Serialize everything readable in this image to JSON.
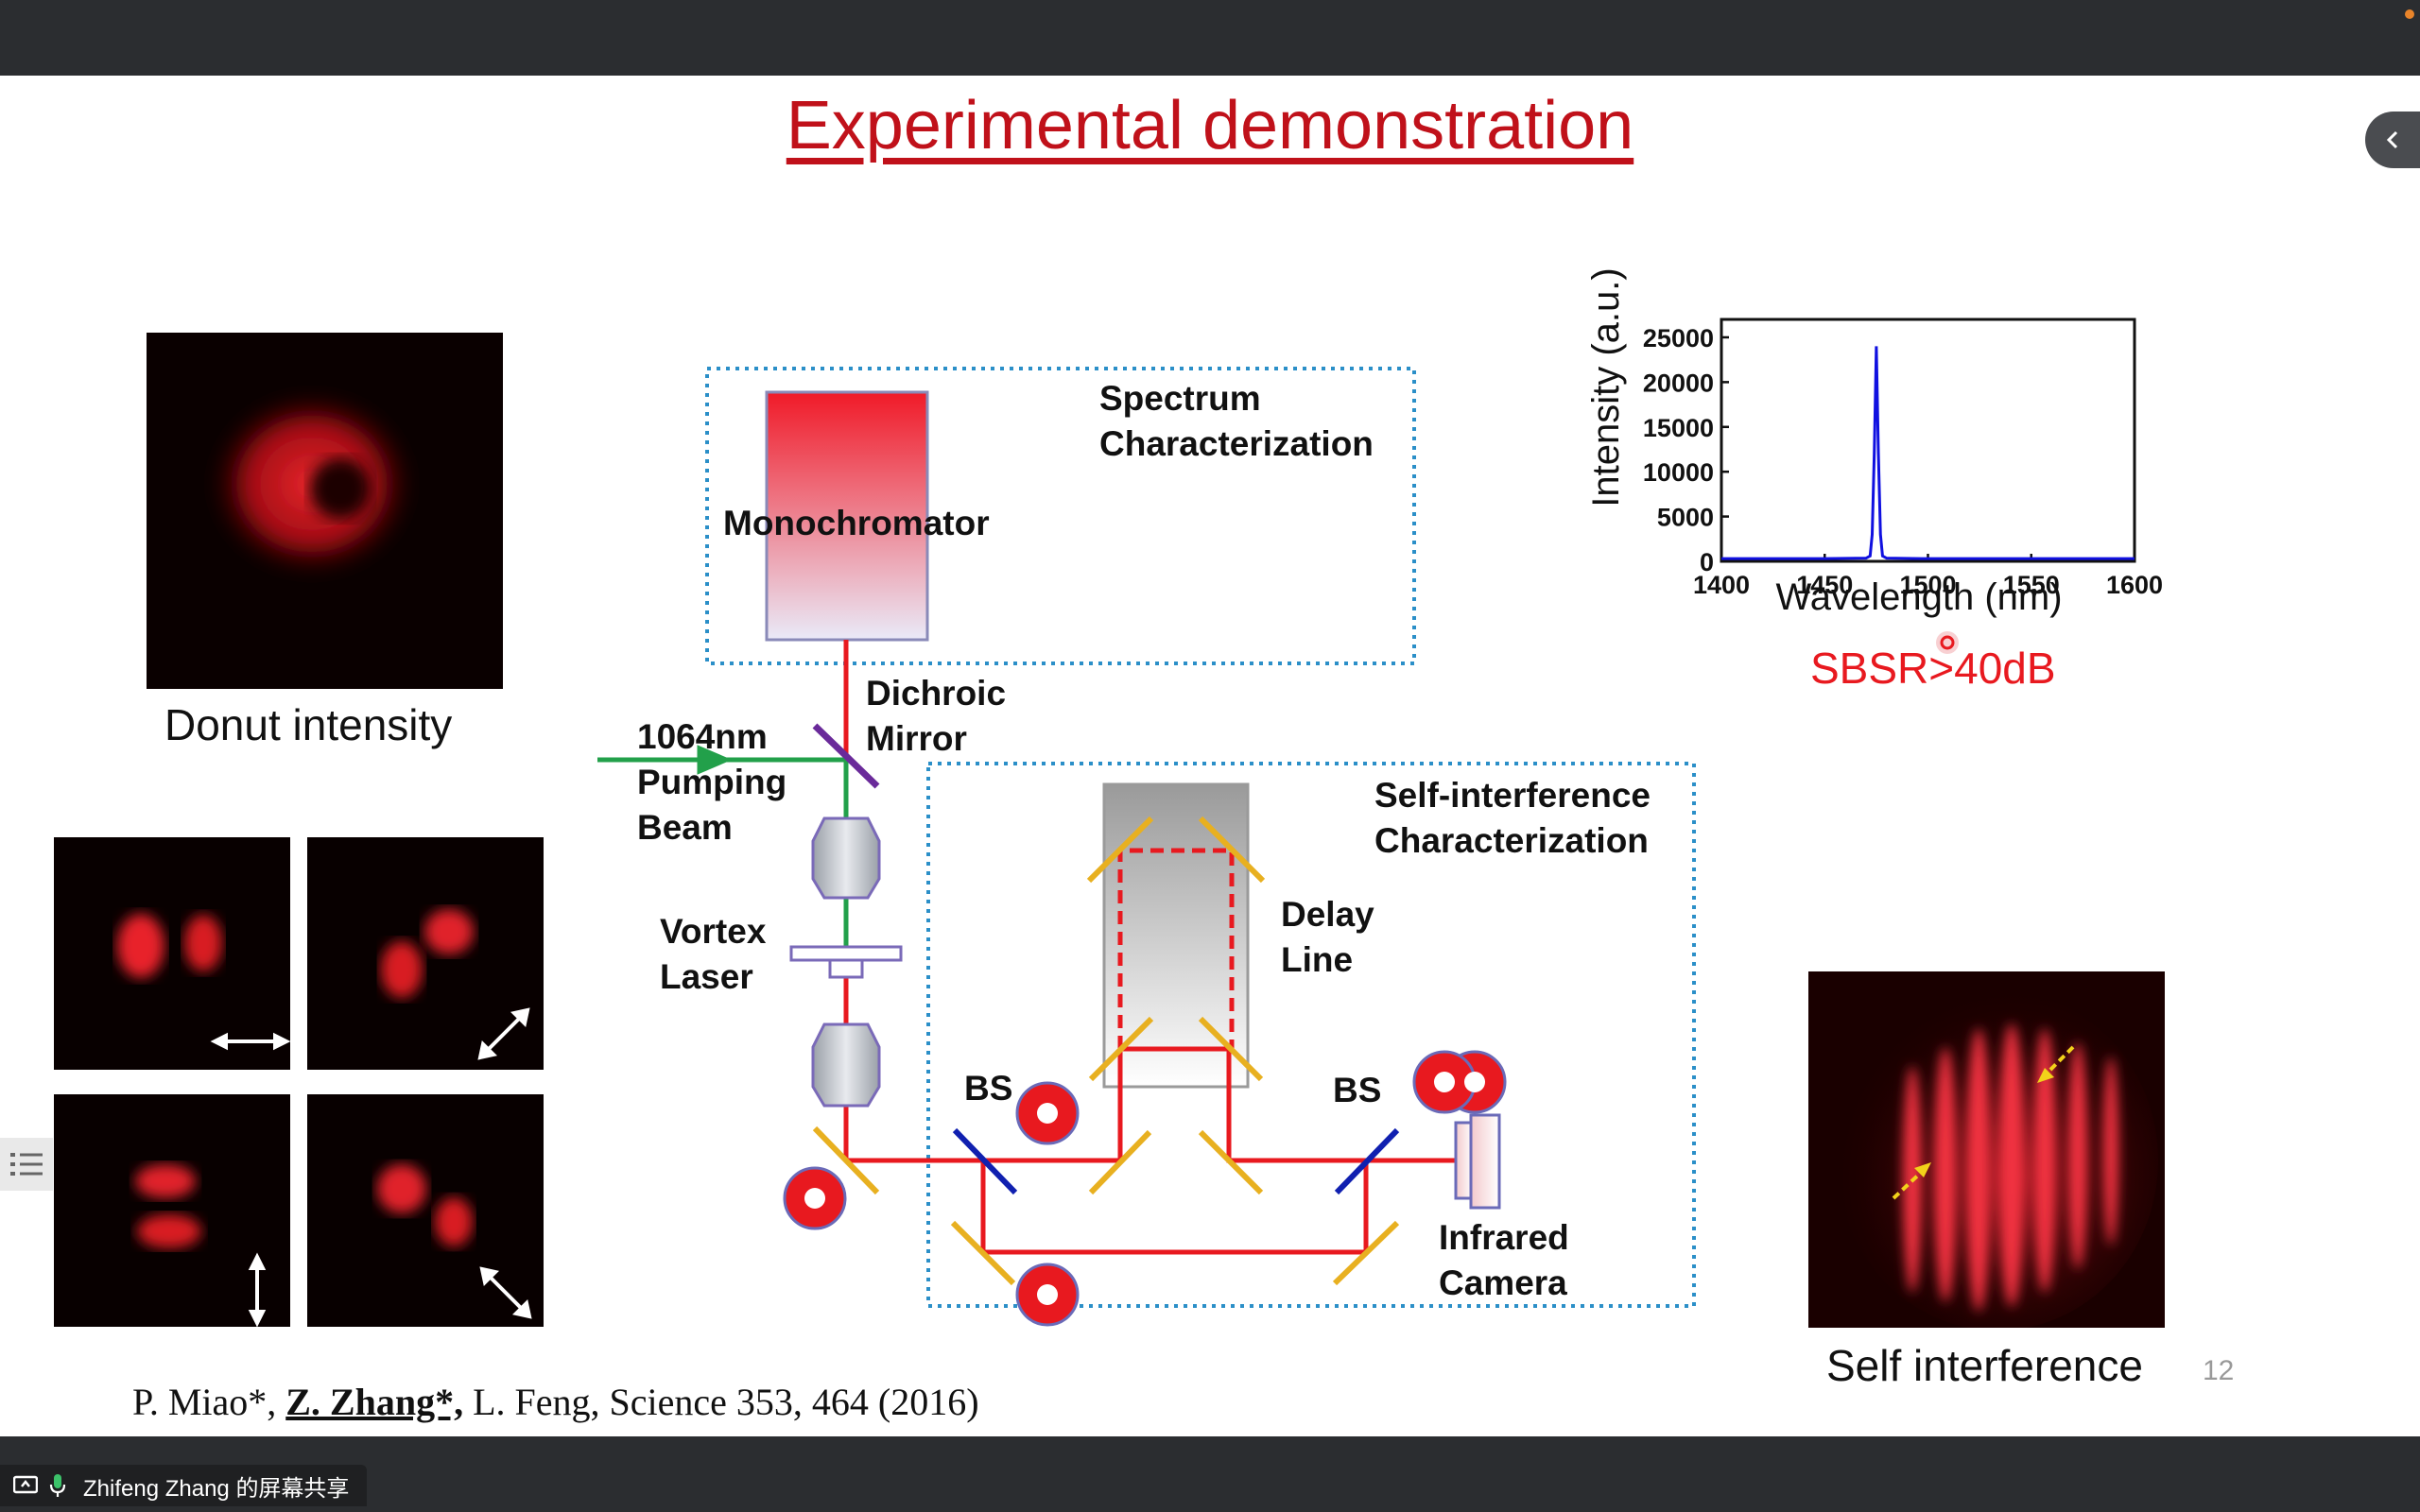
{
  "slide": {
    "title": "Experimental demonstration",
    "page_number": "12",
    "reference": {
      "before": "P. Miao*, ",
      "highlight": "Z. Zhang*,",
      "after": " L. Feng, Science 353, 464 (2016)"
    },
    "captions": {
      "donut": "Donut intensity",
      "self_interference": "Self interference"
    },
    "setup_labels": {
      "spectrum": [
        "Spectrum",
        "Characterization"
      ],
      "monochromator": "Monochromator",
      "dichroic": [
        "Dichroic",
        "Mirror"
      ],
      "pump": [
        "1064nm",
        "Pumping",
        "Beam"
      ],
      "vortex": [
        "Vortex",
        "Laser"
      ],
      "self_interference": [
        "Self-interference",
        "Characterization"
      ],
      "delay": [
        "Delay",
        "Line"
      ],
      "bs_left": "BS",
      "bs_right": "BS",
      "camera": [
        "Infrared",
        "Camera"
      ]
    },
    "sbsr": "SBSR>40dB"
  },
  "screen_share": {
    "label": "Zhifeng Zhang 的屏幕共享"
  },
  "colors": {
    "title": "#c0111a",
    "beam_red": "#e8191f",
    "pump_green": "#22a04a",
    "mirror_gold": "#e8b020",
    "box_blue": "#2b8fc8",
    "spectrum_line": "#1010e0"
  },
  "chart_data": {
    "type": "line",
    "xlabel": "Wavelength (nm)",
    "ylabel": "Intensity (a.u.)",
    "xlim": [
      1400,
      1600
    ],
    "ylim": [
      0,
      27000
    ],
    "xticks": [
      1400,
      1450,
      1500,
      1550,
      1600
    ],
    "yticks": [
      0,
      5000,
      10000,
      15000,
      20000,
      25000
    ],
    "series": [
      {
        "x": [
          1400,
          1450,
          1470,
          1472,
          1473,
          1474,
          1475,
          1476,
          1477,
          1478,
          1480,
          1500,
          1550,
          1600
        ],
        "y": [
          300,
          300,
          350,
          600,
          3000,
          12000,
          24000,
          12000,
          3000,
          600,
          350,
          300,
          300,
          300
        ]
      }
    ]
  }
}
